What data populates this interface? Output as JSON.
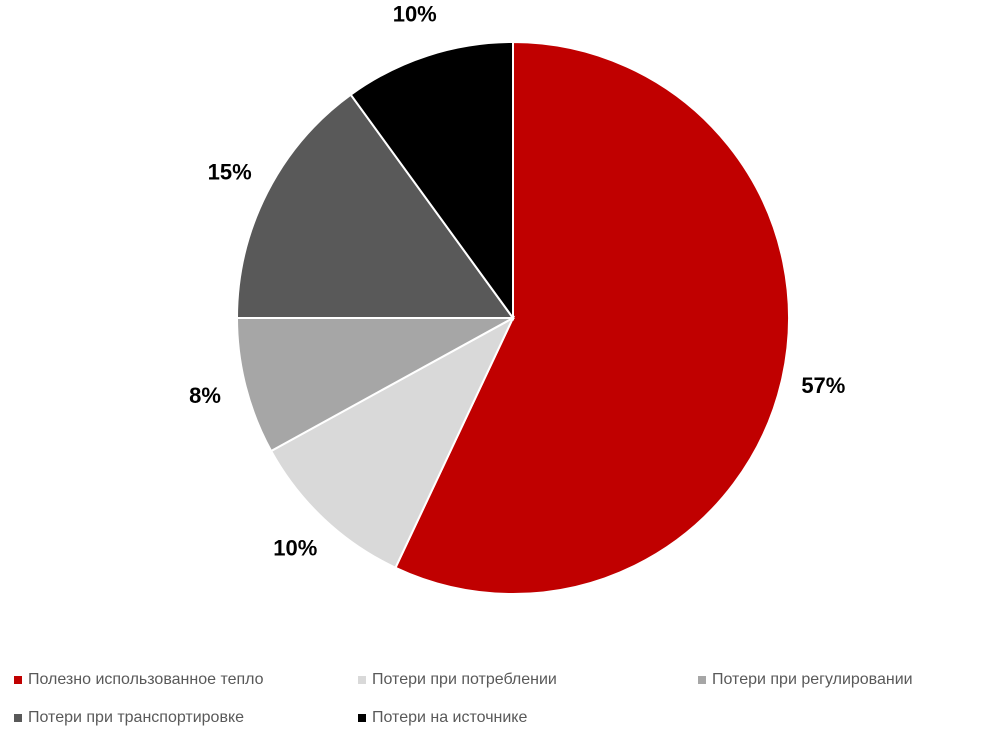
{
  "chart_data": {
    "type": "pie",
    "categories": [
      "Полезно использованное тепло",
      "Потери при потреблении",
      "Потери при регулировании",
      "Потери при транспортировке",
      "Потери на источнике"
    ],
    "values": [
      57,
      10,
      8,
      15,
      10
    ],
    "value_labels": [
      "57%",
      "10%",
      "8%",
      "15%",
      "10%"
    ],
    "colors": [
      "#c00000",
      "#d9d9d9",
      "#a6a6a6",
      "#595959",
      "#000000"
    ],
    "legend": "bottom"
  }
}
